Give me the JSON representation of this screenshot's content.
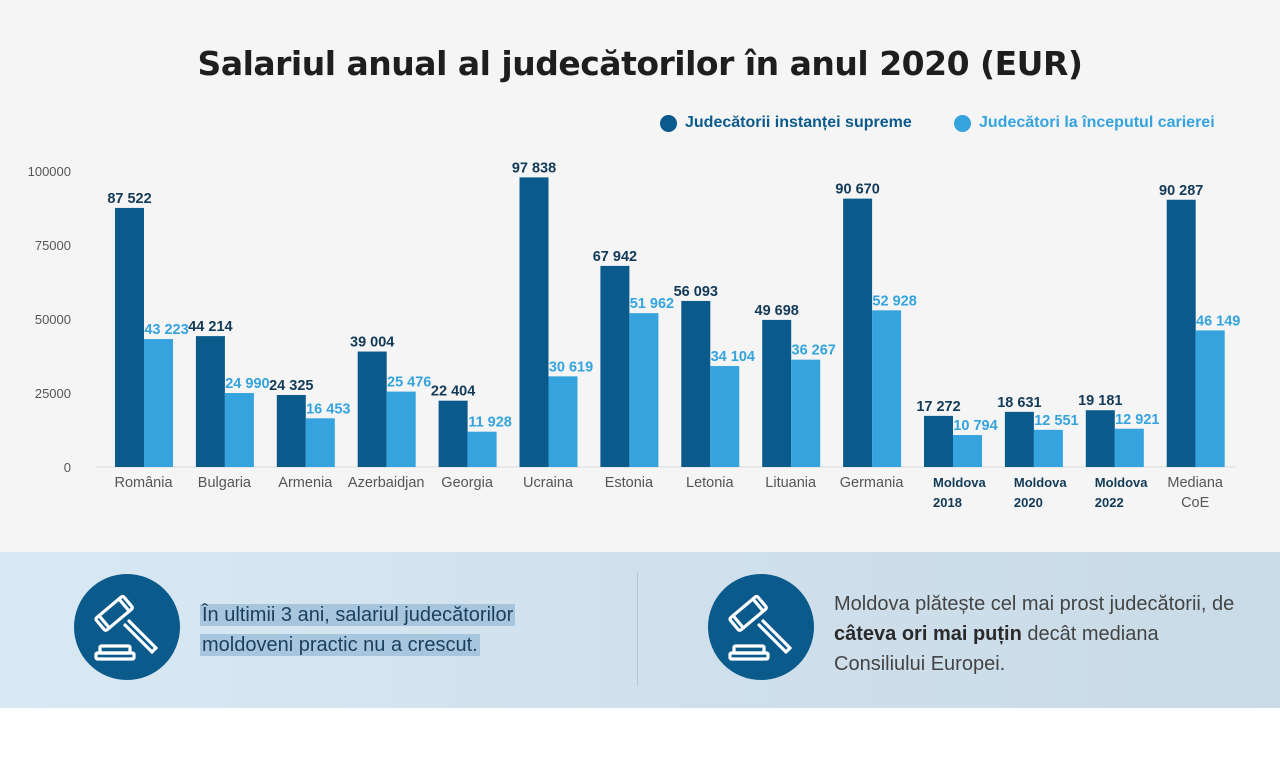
{
  "colors": {
    "supreme": "#0b5a8c",
    "career_start": "#34a3de",
    "grid": "#dcdcdc",
    "axis_text": "#555555"
  },
  "legend": {
    "supreme": "Judecătorii instanței supreme",
    "career_start": "Judecători la începutul carierei"
  },
  "chart_data": {
    "type": "bar",
    "title": "Salariul anual al judecătorilor în anul 2020 (EUR)",
    "categories": [
      [
        "România"
      ],
      [
        "Bulgaria"
      ],
      [
        "Armenia"
      ],
      [
        "Azerbaidjan"
      ],
      [
        "Georgia"
      ],
      [
        "Ucraina"
      ],
      [
        "Estonia"
      ],
      [
        "Letonia"
      ],
      [
        "Lituania"
      ],
      [
        "Germania"
      ],
      [
        "Moldova",
        "2018"
      ],
      [
        "Moldova",
        "2020"
      ],
      [
        "Moldova",
        "2022"
      ],
      [
        "Mediana",
        "CoE"
      ]
    ],
    "bold_categories": [
      false,
      false,
      false,
      false,
      false,
      false,
      false,
      false,
      false,
      false,
      true,
      true,
      true,
      false
    ],
    "series": [
      {
        "name": "Judecătorii instanței supreme",
        "values": [
          87522,
          44214,
          24325,
          39004,
          22404,
          97838,
          67942,
          56093,
          49698,
          90670,
          17272,
          18631,
          19181,
          90287
        ],
        "labels": [
          "87 522",
          "44 214",
          "24 325",
          "39 004",
          "22 404",
          "97 838",
          "67 942",
          "56 093",
          "49 698",
          "90 670",
          "17 272",
          "18 631",
          "19 181",
          "90 287"
        ]
      },
      {
        "name": "Judecători la începutul carierei",
        "values": [
          43223,
          24990,
          16453,
          25476,
          11928,
          30619,
          51962,
          34104,
          36267,
          52928,
          10794,
          12551,
          12921,
          46149
        ],
        "labels": [
          "43 223",
          "24 990",
          "16 453",
          "25 476",
          "11 928",
          "30 619",
          "51 962",
          "34 104",
          "36 267",
          "52 928",
          "10 794",
          "12 551",
          "12 921",
          "46 149"
        ]
      }
    ],
    "yticks": [
      "0",
      "25000",
      "50000",
      "75000",
      "100000"
    ],
    "ylim": [
      0,
      100000
    ],
    "grid": false,
    "legend_position": "top-right"
  },
  "notes": {
    "left": "În ultimii 3 ani, salariul judecătorilor moldoveni practic nu a crescut.",
    "right_part1": "Moldova plătește cel mai prost judecătorii, de ",
    "right_bold": "câteva ori mai puțin",
    "right_part2": " decât mediana Consiliului Europei."
  }
}
